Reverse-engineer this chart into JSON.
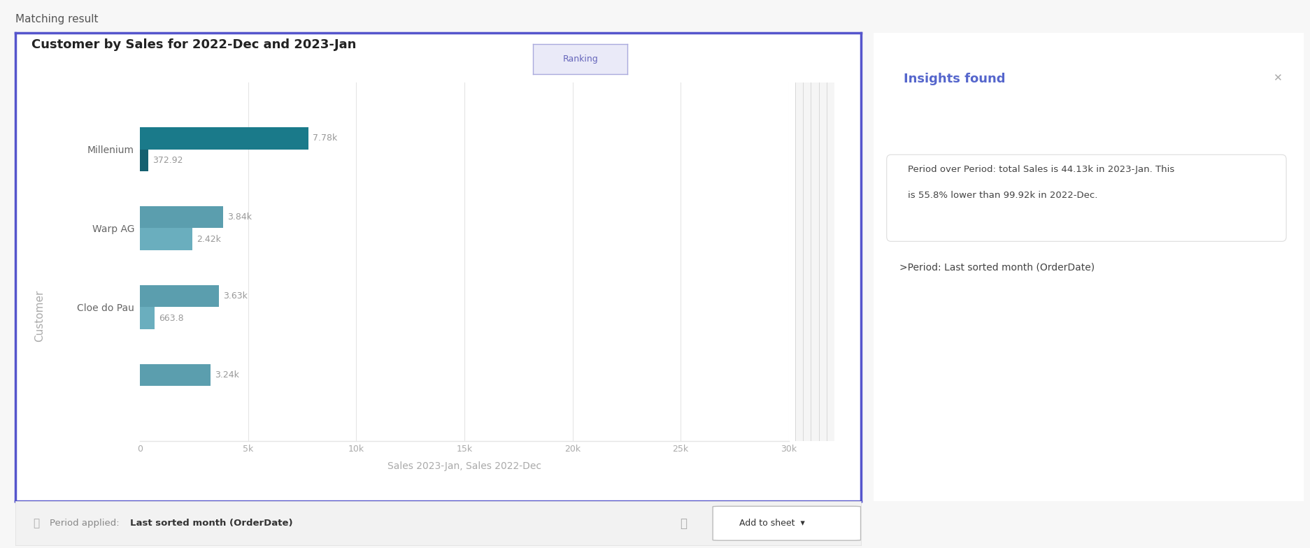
{
  "title": "Customer by Sales for 2022-Dec and 2023-Jan",
  "ranking_label": "Ranking",
  "customers": [
    "Millenium",
    "Warp AG",
    "Cloe do Pau",
    ""
  ],
  "jan2023_values": [
    7780,
    3840,
    3630,
    3240
  ],
  "dec2022_values": [
    372.92,
    2420,
    663.8,
    0
  ],
  "jan2023_labels": [
    "7.78k",
    "3.84k",
    "3.63k",
    "3.24k"
  ],
  "dec2022_labels": [
    "372.92",
    "2.42k",
    "663.8",
    ""
  ],
  "xlim": [
    0,
    30000
  ],
  "xticks": [
    0,
    5000,
    10000,
    15000,
    20000,
    25000,
    30000
  ],
  "xtick_labels": [
    "0",
    "5k",
    "10k",
    "15k",
    "20k",
    "25k",
    "30k"
  ],
  "xlabel": "Sales 2023-Jan, Sales 2022-Dec",
  "ylabel": "Customer",
  "matching_result_text": "Matching result",
  "insights_title": "Insights found",
  "insights_line1": "Period over Period: total Sales is 44.13k in 2023-Jan. This",
  "insights_line2": "is 55.8% lower than 99.92k in 2022-Dec.",
  "insights_period": ">Period: Last sorted month (OrderDate)",
  "period_text": "Period applied:  ",
  "period_bold": "Last sorted month (OrderDate)",
  "outer_bg": "#f7f7f7",
  "card_bg": "#ffffff",
  "card_border": "#5555cc",
  "bar_color_jan_millenium": "#1a7a8a",
  "bar_color_jan_others": "#5b9eae",
  "bar_color_dec_millenium": "#156070",
  "bar_color_dec_others": "#6aaebe",
  "label_color": "#999999",
  "axis_label_color": "#aaaaaa",
  "grid_color": "#e5e5e5",
  "title_color": "#222222",
  "insights_title_color": "#5566cc",
  "insights_text_color": "#444444",
  "badge_bg": "#eaeaf8",
  "badge_border": "#aaaadd",
  "badge_text_color": "#6666bb"
}
